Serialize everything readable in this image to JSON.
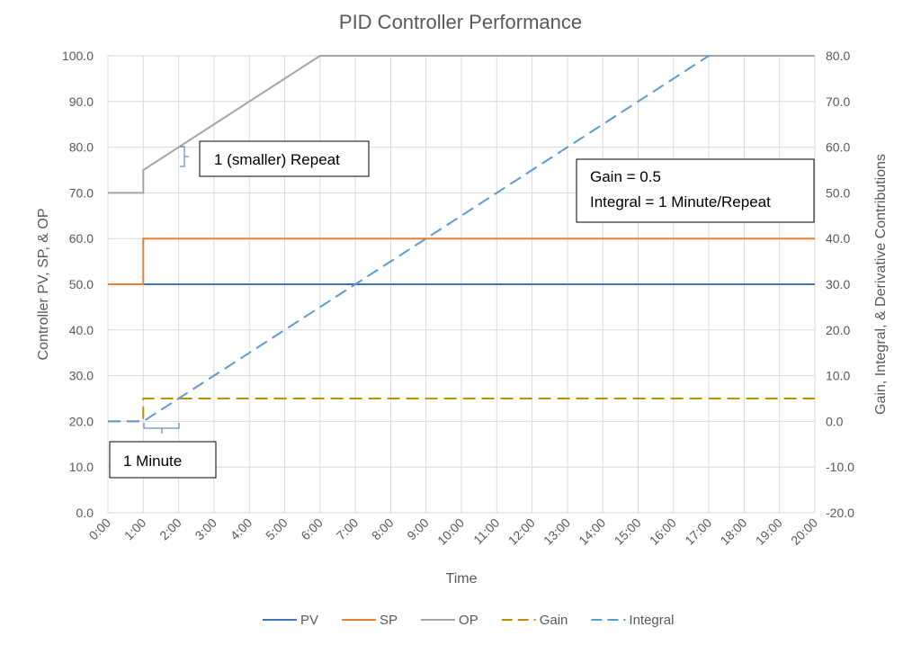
{
  "chart_data": {
    "type": "line",
    "title": "PID Controller Performance",
    "xlabel": "Time",
    "ylabel_left": "Controller PV, SP, & OP",
    "ylabel_right": "Gain, Integral, & Derivative Contributions",
    "x_ticks": [
      "0:00",
      "1:00",
      "2:00",
      "3:00",
      "4:00",
      "5:00",
      "6:00",
      "7:00",
      "8:00",
      "9:00",
      "10:00",
      "11:00",
      "12:00",
      "13:00",
      "14:00",
      "15:00",
      "16:00",
      "17:00",
      "18:00",
      "19:00",
      "20:00"
    ],
    "xlim_minutes": [
      0,
      20
    ],
    "ylim_left": [
      0,
      100
    ],
    "ylim_right": [
      -20,
      80
    ],
    "y_ticks_left": [
      "0.0",
      "10.0",
      "20.0",
      "30.0",
      "40.0",
      "50.0",
      "60.0",
      "70.0",
      "80.0",
      "90.0",
      "100.0"
    ],
    "y_ticks_right": [
      "-20.0",
      "-10.0",
      "0.0",
      "10.0",
      "20.0",
      "30.0",
      "40.0",
      "50.0",
      "60.0",
      "70.0",
      "80.0"
    ],
    "grid": true,
    "legend_position": "bottom",
    "series": [
      {
        "name": "PV",
        "axis": "left",
        "style": "solid",
        "color": "#4472C4",
        "points": [
          [
            0,
            50
          ],
          [
            20,
            50
          ]
        ]
      },
      {
        "name": "SP",
        "axis": "left",
        "style": "solid",
        "color": "#ED7D31",
        "points": [
          [
            0,
            50
          ],
          [
            1,
            50
          ],
          [
            1,
            60
          ],
          [
            20,
            60
          ]
        ]
      },
      {
        "name": "OP",
        "axis": "left",
        "style": "solid",
        "color": "#A5A5A5",
        "points": [
          [
            0,
            70
          ],
          [
            1,
            70
          ],
          [
            1,
            75
          ],
          [
            6,
            100
          ],
          [
            20,
            100
          ]
        ]
      },
      {
        "name": "Gain",
        "axis": "right",
        "style": "dashed",
        "color": "#BF9000",
        "points": [
          [
            0,
            0
          ],
          [
            1,
            0
          ],
          [
            1,
            5
          ],
          [
            20,
            5
          ]
        ]
      },
      {
        "name": "Integral",
        "axis": "right",
        "style": "dashed",
        "color": "#5B9BD5",
        "points": [
          [
            0,
            0
          ],
          [
            1,
            0
          ],
          [
            17,
            80
          ]
        ]
      }
    ],
    "annotations": {
      "repeat": "1 (smaller) Repeat",
      "minute": "1 Minute",
      "gain_line": "Gain = 0.5",
      "integral_line": "Integral = 1 Minute/Repeat"
    }
  }
}
